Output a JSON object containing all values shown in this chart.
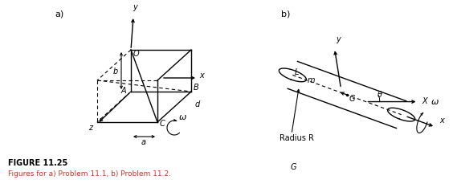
{
  "fig_width": 5.64,
  "fig_height": 2.29,
  "dpi": 100,
  "bg_color": "#ffffff",
  "line_color": "#000000",
  "figure_label": "FIGURE 11.25",
  "caption": "Figures for a) Problem 11.1, b) Problem 11.2.",
  "caption_color": "#c0392b",
  "fig_label_color": "#000000",
  "a_label": "a)",
  "b_label": "b)"
}
